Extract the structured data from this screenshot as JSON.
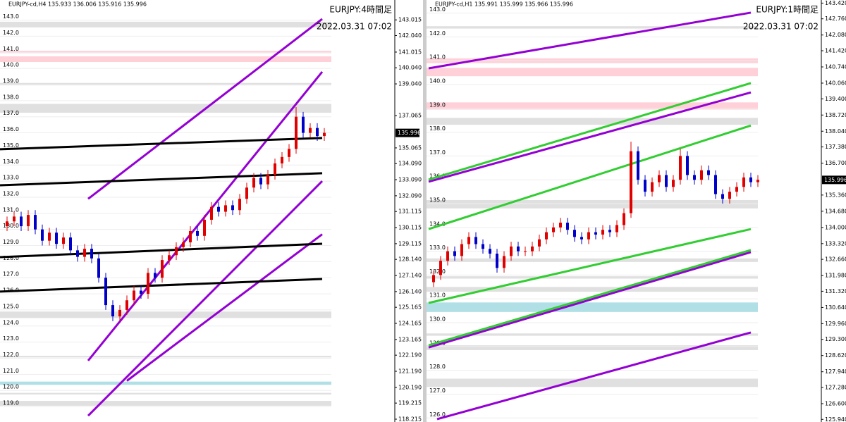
{
  "chart_data": [
    {
      "type": "candlestick",
      "header": "EURJPY-cd,H4  135.933 136.006 135.916 135.996",
      "title": "EURJPY:4時間足",
      "date": "2022.03.31 07:02",
      "xlim": [
        -1,
        55
      ],
      "ylim": [
        118.04,
        144.25
      ],
      "yticks": [
        143.015,
        {
          "value": 142.04,
          "label": "142.040"
        },
        141.015,
        {
          "value": 140.04,
          "label": "140.040"
        },
        {
          "value": 139.04,
          "label": "139.040"
        },
        137.065,
        135.065,
        {
          "value": 134.09,
          "label": "134.090"
        },
        {
          "value": 133.09,
          "label": "133.090"
        },
        {
          "value": 132.09,
          "label": "132.090"
        },
        131.115,
        130.115,
        129.115,
        {
          "value": 128.14,
          "label": "128.140"
        },
        {
          "value": 127.14,
          "label": "127.140"
        },
        {
          "value": 126.14,
          "label": "126.140"
        },
        125.165,
        124.165,
        123.165,
        {
          "value": 122.19,
          "label": "122.190"
        },
        {
          "value": 121.19,
          "label": "121.190"
        },
        {
          "value": 120.19,
          "label": "120.190"
        },
        119.215,
        118.215
      ],
      "last_price": 135.996,
      "levels": [
        {
          "value": 143,
          "label": "143.0"
        },
        {
          "value": 142,
          "label": "142.0"
        },
        {
          "value": 141,
          "label": "141.0"
        },
        {
          "value": 140,
          "label": "140.0"
        },
        {
          "value": 139,
          "label": "139.0"
        },
        {
          "value": 138,
          "label": "138.0"
        },
        {
          "value": 137,
          "label": "137.0"
        },
        {
          "value": 136,
          "label": "136.0"
        },
        {
          "value": 135,
          "label": "135.0"
        },
        {
          "value": 134,
          "label": "134.0"
        },
        {
          "value": 133,
          "label": "133.0"
        },
        {
          "value": 132,
          "label": "132.0"
        },
        {
          "value": 131,
          "label": "131.0"
        },
        {
          "value": 130,
          "label": "130.0"
        },
        {
          "value": 129,
          "label": "129.0"
        },
        {
          "value": 128,
          "label": "128.0"
        },
        {
          "value": 127,
          "label": "127.0"
        },
        {
          "value": 126,
          "label": "126.0"
        },
        {
          "value": 125,
          "label": "125.0"
        },
        {
          "value": 124,
          "label": "124.0"
        },
        {
          "value": 123,
          "label": "123.0"
        },
        {
          "value": 122,
          "label": "122.0"
        },
        {
          "value": 121,
          "label": "121.0"
        },
        {
          "value": 120,
          "label": "120.0"
        },
        {
          "value": 119,
          "label": "119.0"
        }
      ],
      "bands": [
        {
          "from": 142.55,
          "to": 142.9,
          "color": "#e0e0e0"
        },
        {
          "from": 140.95,
          "to": 141.1,
          "color": "#ffd0d8"
        },
        {
          "from": 140.4,
          "to": 140.75,
          "color": "#ffd0d8"
        },
        {
          "from": 138.95,
          "to": 139.1,
          "color": "#e0e0e0"
        },
        {
          "from": 137.25,
          "to": 137.8,
          "color": "#e0e0e0"
        },
        {
          "from": 124.5,
          "to": 124.9,
          "color": "#e0e0e0"
        },
        {
          "from": 122.05,
          "to": 122.15,
          "color": "#e0e0e0"
        },
        {
          "from": 120.35,
          "to": 120.55,
          "color": "#b0e0e6"
        },
        {
          "from": 119.75,
          "to": 119.85,
          "color": "#e0e0e0"
        },
        {
          "from": 119.05,
          "to": 119.35,
          "color": "#e0e0e0"
        }
      ],
      "trendlines": [
        {
          "color": "#9400d3",
          "x": [
            11.5,
            44.7
          ],
          "y": [
            131.9,
            143.07
          ]
        },
        {
          "color": "#9400d3",
          "x": [
            11.5,
            44.7
          ],
          "y": [
            121.85,
            139.79
          ]
        },
        {
          "color": "#9400d3",
          "x": [
            11.5,
            44.7
          ],
          "y": [
            118.43,
            133.0
          ]
        },
        {
          "color": "#9400d3",
          "x": [
            17,
            44.7
          ],
          "y": [
            120.6,
            129.7
          ]
        },
        {
          "color": "#000000",
          "x": [
            -1,
            44.7
          ],
          "y": [
            134.98,
            135.68
          ]
        },
        {
          "color": "#000000",
          "x": [
            -1,
            44.7
          ],
          "y": [
            132.74,
            133.49
          ]
        },
        {
          "color": "#000000",
          "x": [
            -1,
            44.7
          ],
          "y": [
            128.28,
            129.11
          ]
        },
        {
          "color": "#000000",
          "x": [
            -1,
            44.7
          ],
          "y": [
            126.14,
            126.92
          ]
        }
      ],
      "up_color": "#e00000",
      "down_color": "#0000c8",
      "open": [
        130.2,
        130.5,
        130.8,
        130.2,
        130.9,
        130.0,
        129.3,
        129.8,
        129.1,
        129.5,
        128.7,
        128.3,
        128.8,
        128.2,
        127.0,
        125.3,
        124.6,
        125.0,
        125.6,
        126.2,
        126.0,
        127.3,
        127.0,
        128.1,
        128.4,
        128.9,
        129.2,
        129.9,
        129.6,
        130.6,
        131.4,
        131.1,
        131.5,
        131.2,
        131.9,
        132.6,
        133.2,
        132.8,
        133.4,
        134.1,
        134.5,
        135.0,
        137.0,
        136.0,
        136.3,
        135.8
      ],
      "high": [
        130.8,
        131.1,
        131.1,
        131.2,
        131.2,
        130.3,
        130.1,
        130.1,
        129.8,
        129.8,
        129.0,
        129.1,
        129.1,
        128.5,
        127.3,
        125.6,
        125.3,
        125.9,
        126.5,
        126.5,
        127.6,
        127.6,
        128.4,
        128.7,
        129.2,
        129.5,
        130.2,
        130.2,
        130.9,
        131.7,
        131.7,
        131.8,
        131.8,
        132.2,
        132.9,
        133.5,
        133.5,
        133.7,
        134.4,
        134.8,
        135.3,
        137.6,
        137.3,
        136.6,
        136.6,
        136.3
      ],
      "low": [
        129.9,
        130.2,
        129.9,
        129.9,
        129.7,
        129.0,
        129.0,
        128.8,
        128.8,
        128.4,
        128.0,
        128.0,
        127.9,
        126.7,
        125.0,
        124.3,
        124.3,
        124.7,
        125.3,
        125.7,
        125.7,
        126.7,
        126.7,
        127.8,
        128.1,
        128.6,
        128.9,
        129.3,
        129.3,
        130.3,
        130.8,
        130.8,
        130.9,
        130.9,
        131.6,
        132.3,
        132.5,
        132.5,
        133.1,
        133.8,
        134.2,
        134.7,
        135.7,
        135.7,
        135.5,
        135.5
      ],
      "close": [
        130.5,
        130.8,
        130.2,
        130.9,
        130.0,
        129.3,
        129.8,
        129.1,
        129.5,
        128.7,
        128.3,
        128.8,
        128.2,
        127.0,
        125.3,
        124.6,
        125.0,
        125.6,
        126.2,
        126.0,
        127.3,
        127.0,
        128.1,
        128.4,
        128.9,
        129.2,
        129.9,
        129.6,
        130.6,
        131.4,
        131.1,
        131.5,
        131.2,
        131.9,
        132.6,
        133.2,
        132.8,
        133.4,
        134.1,
        134.5,
        135.0,
        137.0,
        136.0,
        136.3,
        135.8,
        136.0
      ]
    },
    {
      "type": "candlestick",
      "header": "EURJPY-cd,H1  135.991 135.999 135.966 135.996",
      "title": "EURJPY:1時間足",
      "date": "2022.03.31 07:02",
      "xlim": [
        -1,
        55
      ],
      "ylim": [
        125.83,
        143.55
      ],
      "yticks": [
        {
          "value": 143.42,
          "label": "143.420"
        },
        {
          "value": 142.76,
          "label": "142.760"
        },
        {
          "value": 142.08,
          "label": "142.080"
        },
        {
          "value": 141.42,
          "label": "141.420"
        },
        {
          "value": 140.74,
          "label": "140.740"
        },
        {
          "value": 140.06,
          "label": "140.060"
        },
        {
          "value": 139.4,
          "label": "139.400"
        },
        {
          "value": 138.72,
          "label": "138.720"
        },
        {
          "value": 138.04,
          "label": "138.040"
        },
        {
          "value": 137.38,
          "label": "137.380"
        },
        {
          "value": 136.7,
          "label": "136.700"
        },
        {
          "value": 135.36,
          "label": "135.360"
        },
        {
          "value": 134.68,
          "label": "134.680"
        },
        {
          "value": 134,
          "label": "134.000"
        },
        {
          "value": 133.32,
          "label": "133.320"
        },
        {
          "value": 132.66,
          "label": "132.660"
        },
        {
          "value": 131.98,
          "label": "131.980"
        },
        {
          "value": 131.32,
          "label": "131.320"
        },
        {
          "value": 130.64,
          "label": "130.640"
        },
        {
          "value": 129.96,
          "label": "129.960"
        },
        {
          "value": 129.3,
          "label": "129.300"
        },
        {
          "value": 128.62,
          "label": "128.620"
        },
        {
          "value": 127.94,
          "label": "127.940"
        },
        {
          "value": 127.28,
          "label": "127.280"
        },
        {
          "value": 126.6,
          "label": "126.600"
        },
        {
          "value": 125.94,
          "label": "125.940"
        }
      ],
      "last_price": 135.996,
      "levels": [
        {
          "value": 143,
          "label": "143.0"
        },
        {
          "value": 142,
          "label": "142.0"
        },
        {
          "value": 141,
          "label": "141.0"
        },
        {
          "value": 140,
          "label": "140.0"
        },
        {
          "value": 139,
          "label": "139.0"
        },
        {
          "value": 138,
          "label": "138.0"
        },
        {
          "value": 137,
          "label": "137.0"
        },
        {
          "value": 136,
          "label": "136.0"
        },
        {
          "value": 135,
          "label": "135.0"
        },
        {
          "value": 134,
          "label": "134.0"
        },
        {
          "value": 133,
          "label": "133.0"
        },
        {
          "value": 132,
          "label": "132.0"
        },
        {
          "value": 131,
          "label": "131.0"
        },
        {
          "value": 130,
          "label": "130.0"
        },
        {
          "value": 129,
          "label": "129.0"
        },
        {
          "value": 128,
          "label": "128.0"
        },
        {
          "value": 127,
          "label": "127.0"
        },
        {
          "value": 126,
          "label": "126.0"
        }
      ],
      "bands": [
        {
          "from": 142.35,
          "to": 142.45,
          "color": "#e0e0e0"
        },
        {
          "from": 140.9,
          "to": 141.1,
          "color": "#ffd0d8"
        },
        {
          "from": 140.35,
          "to": 140.7,
          "color": "#ffd0d8"
        },
        {
          "from": 138.95,
          "to": 139.25,
          "color": "#ffd0d8"
        },
        {
          "from": 138.31,
          "to": 138.6,
          "color": "#e0e0e0"
        },
        {
          "from": 134.8,
          "to": 135.15,
          "color": "#e0e0e0"
        },
        {
          "from": 132.55,
          "to": 132.7,
          "color": "#e0e0e0"
        },
        {
          "from": 131.85,
          "to": 131.95,
          "color": "#e0e0e0"
        },
        {
          "from": 131.3,
          "to": 131.5,
          "color": "#e0e0e0"
        },
        {
          "from": 130.45,
          "to": 130.85,
          "color": "#b0e0e6"
        },
        {
          "from": 129.45,
          "to": 129.55,
          "color": "#e0e0e0"
        },
        {
          "from": 128.85,
          "to": 129.05,
          "color": "#e0e0e0"
        },
        {
          "from": 127.3,
          "to": 127.65,
          "color": "#e0e0e0"
        }
      ],
      "trendlines": [
        {
          "color": "#9400d3",
          "x": [
            -0.7,
            45
          ],
          "y": [
            140.68,
            143.02
          ]
        },
        {
          "color": "#9400d3",
          "x": [
            -0.7,
            45
          ],
          "y": [
            135.92,
            139.67
          ]
        },
        {
          "color": "#9400d3",
          "x": [
            -0.7,
            45
          ],
          "y": [
            128.96,
            132.96
          ]
        },
        {
          "color": "#9400d3",
          "x": [
            0.5,
            45
          ],
          "y": [
            125.95,
            129.59
          ]
        },
        {
          "color": "#32cd32",
          "x": [
            -0.7,
            45
          ],
          "y": [
            136.01,
            140.06
          ]
        },
        {
          "color": "#32cd32",
          "x": [
            -0.7,
            45
          ],
          "y": [
            133.93,
            138.28
          ]
        },
        {
          "color": "#32cd32",
          "x": [
            -0.7,
            45
          ],
          "y": [
            130.83,
            133.93
          ]
        },
        {
          "color": "#32cd32",
          "x": [
            -0.7,
            45
          ],
          "y": [
            129.05,
            133.05
          ]
        }
      ],
      "up_color": "#e00000",
      "down_color": "#0000c8",
      "open": [
        131.7,
        132.0,
        132.6,
        133.0,
        132.8,
        133.3,
        133.6,
        133.3,
        133.1,
        132.9,
        132.3,
        132.8,
        133.2,
        133.0,
        133.0,
        133.2,
        133.5,
        133.8,
        134.0,
        134.2,
        133.9,
        133.6,
        133.5,
        133.8,
        133.7,
        133.9,
        133.8,
        134.1,
        134.6,
        137.2,
        136.0,
        135.5,
        135.9,
        136.2,
        135.7,
        136.0,
        137.0,
        136.2,
        136.0,
        136.4,
        136.2,
        135.4,
        135.2,
        135.5,
        135.7,
        136.1,
        135.9
      ],
      "high": [
        132.2,
        132.8,
        133.2,
        133.2,
        133.5,
        133.8,
        133.8,
        133.5,
        133.3,
        133.1,
        133.0,
        133.4,
        133.4,
        133.2,
        133.4,
        133.7,
        134.0,
        134.2,
        134.4,
        134.4,
        134.1,
        133.8,
        134.0,
        134.0,
        134.1,
        134.1,
        134.3,
        134.8,
        137.6,
        137.4,
        136.2,
        136.1,
        136.4,
        136.4,
        136.2,
        137.3,
        137.2,
        136.4,
        136.6,
        136.6,
        136.4,
        135.6,
        135.7,
        135.9,
        136.3,
        136.3,
        136.2
      ],
      "low": [
        131.5,
        131.8,
        132.4,
        132.6,
        132.6,
        133.1,
        133.1,
        132.9,
        132.7,
        132.1,
        132.1,
        132.6,
        132.8,
        132.8,
        132.8,
        133.0,
        133.3,
        133.6,
        133.8,
        133.7,
        133.4,
        133.3,
        133.3,
        133.5,
        133.5,
        133.6,
        133.6,
        133.9,
        134.4,
        135.8,
        135.3,
        135.3,
        135.7,
        135.5,
        135.5,
        135.8,
        136.0,
        135.8,
        135.8,
        136.0,
        135.2,
        135.0,
        135.0,
        135.3,
        135.5,
        135.7,
        135.7
      ],
      "close": [
        132.0,
        132.6,
        133.0,
        132.8,
        133.3,
        133.6,
        133.3,
        133.1,
        132.9,
        132.3,
        132.8,
        133.2,
        133.0,
        133.0,
        133.2,
        133.5,
        133.8,
        134.0,
        134.2,
        133.9,
        133.6,
        133.5,
        133.8,
        133.7,
        133.9,
        133.8,
        134.1,
        134.6,
        137.2,
        136.0,
        135.5,
        135.9,
        136.2,
        135.7,
        136.0,
        137.0,
        136.2,
        136.0,
        136.4,
        136.2,
        135.4,
        135.2,
        135.5,
        135.7,
        136.1,
        135.9,
        136.0
      ]
    }
  ]
}
